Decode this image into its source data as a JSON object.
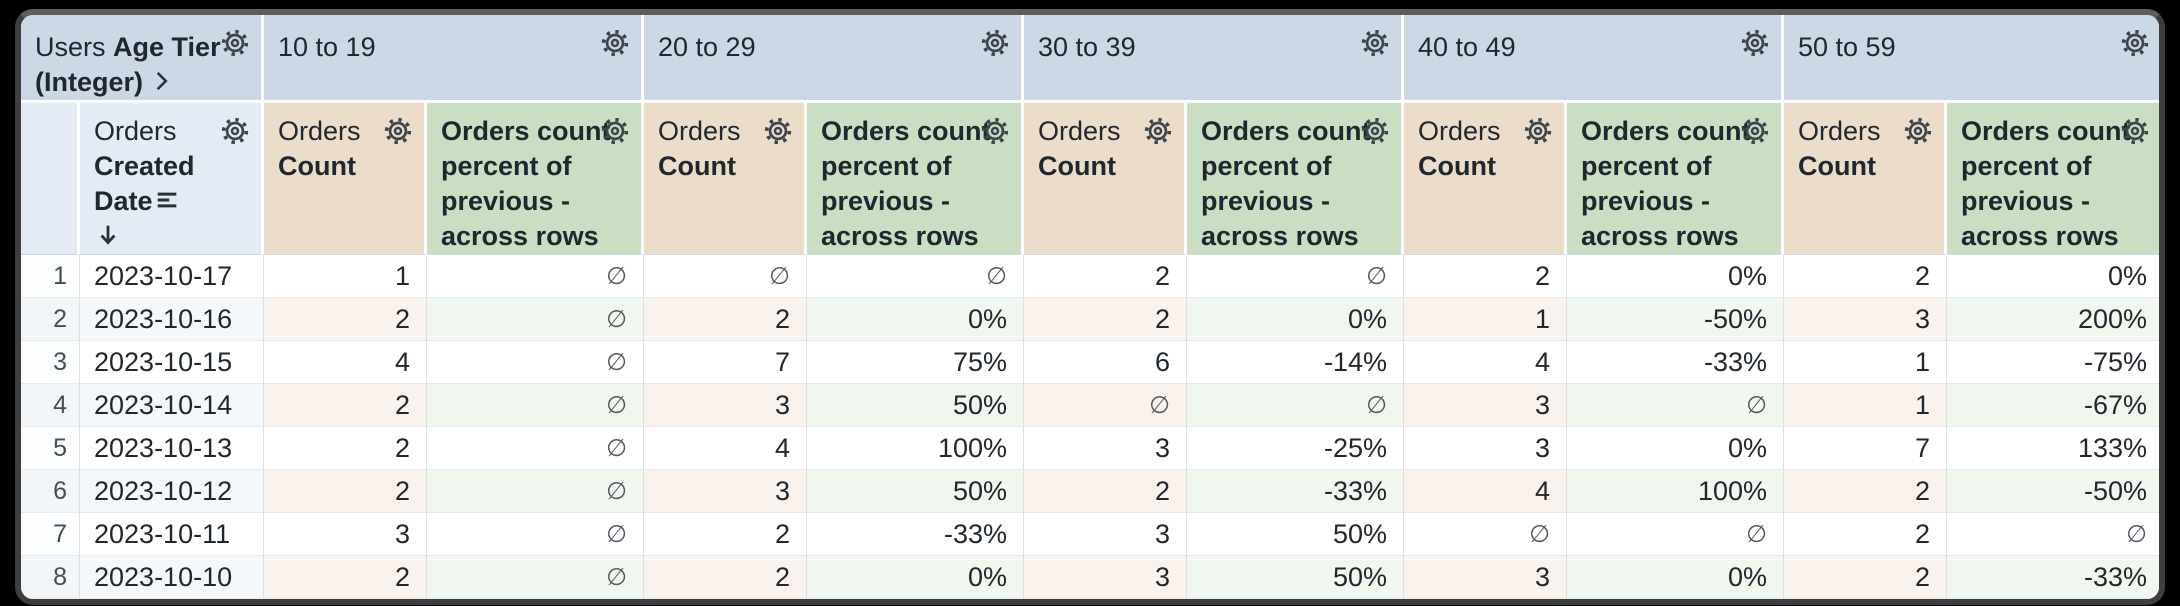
{
  "window": {
    "frame_color": "#3e3e3e",
    "background": "#000000"
  },
  "colors": {
    "pivot_header_bg": "#ccd8e5",
    "row_header_bg": "#e4ebf4",
    "count_header_bg": "#ecddca",
    "pct_header_bg": "#cadec4",
    "even_row_count_bg": "#faf3ed",
    "even_row_pct_bg": "#f0f7ee",
    "text": "#21272e"
  },
  "table": {
    "corner_prefix": "Users",
    "corner_field": "Age Tier (Integer)",
    "row_prefix": "Orders",
    "row_field": "Created Date",
    "sort_direction": "descending",
    "pivots": [
      "10 to 19",
      "20 to 29",
      "30 to 39",
      "40 to 49",
      "50 to 59"
    ],
    "measures": {
      "count_prefix": "Orders",
      "count_label": "Count",
      "pct_label": "Orders count percent of previous - across rows"
    },
    "null_symbol": "∅",
    "rows": [
      {
        "num": "1",
        "date": "2023-10-17",
        "values": [
          "1",
          "∅",
          "∅",
          "∅",
          "2",
          "∅",
          "2",
          "0%",
          "2",
          "0%"
        ]
      },
      {
        "num": "2",
        "date": "2023-10-16",
        "values": [
          "2",
          "∅",
          "2",
          "0%",
          "2",
          "0%",
          "1",
          "-50%",
          "3",
          "200%"
        ]
      },
      {
        "num": "3",
        "date": "2023-10-15",
        "values": [
          "4",
          "∅",
          "7",
          "75%",
          "6",
          "-14%",
          "4",
          "-33%",
          "1",
          "-75%"
        ]
      },
      {
        "num": "4",
        "date": "2023-10-14",
        "values": [
          "2",
          "∅",
          "3",
          "50%",
          "∅",
          "∅",
          "3",
          "∅",
          "1",
          "-67%"
        ]
      },
      {
        "num": "5",
        "date": "2023-10-13",
        "values": [
          "2",
          "∅",
          "4",
          "100%",
          "3",
          "-25%",
          "3",
          "0%",
          "7",
          "133%"
        ]
      },
      {
        "num": "6",
        "date": "2023-10-12",
        "values": [
          "2",
          "∅",
          "3",
          "50%",
          "2",
          "-33%",
          "4",
          "100%",
          "2",
          "-50%"
        ]
      },
      {
        "num": "7",
        "date": "2023-10-11",
        "values": [
          "3",
          "∅",
          "2",
          "-33%",
          "3",
          "50%",
          "∅",
          "∅",
          "2",
          "∅"
        ]
      },
      {
        "num": "8",
        "date": "2023-10-10",
        "values": [
          "2",
          "∅",
          "2",
          "0%",
          "3",
          "50%",
          "3",
          "0%",
          "2",
          "-33%"
        ]
      }
    ]
  }
}
